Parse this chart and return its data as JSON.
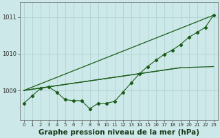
{
  "title": "Graphe pression niveau de la mer (hPa)",
  "title_fontsize": 7.5,
  "bg_color": "#cce8e8",
  "line_color": "#1a5c1a",
  "grid_color": "#aacfcf",
  "ylim": [
    1008.2,
    1011.4
  ],
  "xlim": [
    -0.5,
    23.5
  ],
  "yticks": [
    1009,
    1010,
    1011
  ],
  "xticks": [
    0,
    1,
    2,
    3,
    4,
    5,
    6,
    7,
    8,
    9,
    10,
    11,
    12,
    13,
    14,
    15,
    16,
    17,
    18,
    19,
    20,
    21,
    22,
    23
  ],
  "series": [
    {
      "x": [
        0,
        1,
        2,
        3,
        4,
        5,
        6,
        7,
        8,
        9,
        10,
        11,
        12,
        13,
        14,
        15,
        16,
        17,
        18,
        19,
        20,
        21,
        22,
        23
      ],
      "y": [
        1008.65,
        1008.85,
        1009.05,
        1009.1,
        1008.95,
        1008.75,
        1008.72,
        1008.72,
        1008.5,
        1008.65,
        1008.65,
        1008.7,
        1008.95,
        1009.2,
        1009.45,
        1009.65,
        1009.82,
        1009.98,
        1010.1,
        1010.25,
        1010.45,
        1010.58,
        1010.72,
        1011.05
      ],
      "marker": "D",
      "markersize": 2.2,
      "linewidth": 0.8,
      "zorder": 5
    },
    {
      "x": [
        0,
        23
      ],
      "y": [
        1009.0,
        1011.05
      ],
      "marker": null,
      "linewidth": 0.9,
      "zorder": 3
    },
    {
      "x": [
        0,
        19
      ],
      "y": [
        1009.0,
        1009.62
      ],
      "marker": null,
      "linewidth": 0.9,
      "zorder": 3
    },
    {
      "x": [
        0,
        19,
        23
      ],
      "y": [
        1009.0,
        1009.62,
        1009.65
      ],
      "marker": null,
      "linewidth": 0.9,
      "zorder": 3
    }
  ]
}
